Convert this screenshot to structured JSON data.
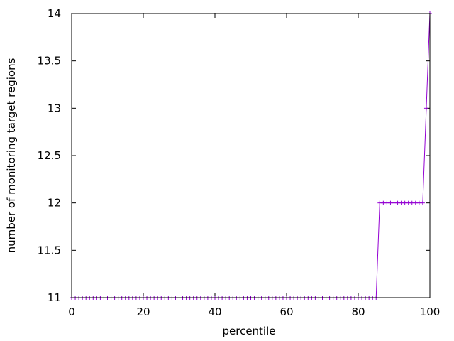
{
  "chart_data": {
    "type": "line",
    "title": "",
    "xlabel": "percentile",
    "ylabel": "number of monitoring target regions",
    "xlim": [
      0,
      100
    ],
    "ylim": [
      11,
      14
    ],
    "x_ticks": [
      "0",
      "20",
      "40",
      "60",
      "80",
      "100"
    ],
    "y_ticks": [
      "11",
      "11.5",
      "12",
      "12.5",
      "13",
      "13.5",
      "14"
    ],
    "grid": false,
    "legend": "none",
    "series": [
      {
        "color": "#9400d3",
        "marker": "plus",
        "x": [
          0,
          1,
          2,
          3,
          4,
          5,
          6,
          7,
          8,
          9,
          10,
          11,
          12,
          13,
          14,
          15,
          16,
          17,
          18,
          19,
          20,
          21,
          22,
          23,
          24,
          25,
          26,
          27,
          28,
          29,
          30,
          31,
          32,
          33,
          34,
          35,
          36,
          37,
          38,
          39,
          40,
          41,
          42,
          43,
          44,
          45,
          46,
          47,
          48,
          49,
          50,
          51,
          52,
          53,
          54,
          55,
          56,
          57,
          58,
          59,
          60,
          61,
          62,
          63,
          64,
          65,
          66,
          67,
          68,
          69,
          70,
          71,
          72,
          73,
          74,
          75,
          76,
          77,
          78,
          79,
          80,
          81,
          82,
          83,
          84,
          85,
          86,
          87,
          88,
          89,
          90,
          91,
          92,
          93,
          94,
          95,
          96,
          97,
          98,
          99,
          100
        ],
        "y": [
          11,
          11,
          11,
          11,
          11,
          11,
          11,
          11,
          11,
          11,
          11,
          11,
          11,
          11,
          11,
          11,
          11,
          11,
          11,
          11,
          11,
          11,
          11,
          11,
          11,
          11,
          11,
          11,
          11,
          11,
          11,
          11,
          11,
          11,
          11,
          11,
          11,
          11,
          11,
          11,
          11,
          11,
          11,
          11,
          11,
          11,
          11,
          11,
          11,
          11,
          11,
          11,
          11,
          11,
          11,
          11,
          11,
          11,
          11,
          11,
          11,
          11,
          11,
          11,
          11,
          11,
          11,
          11,
          11,
          11,
          11,
          11,
          11,
          11,
          11,
          11,
          11,
          11,
          11,
          11,
          11,
          11,
          11,
          11,
          11,
          11,
          12,
          12,
          12,
          12,
          12,
          12,
          12,
          12,
          12,
          12,
          12,
          12,
          12,
          13,
          14
        ]
      }
    ]
  }
}
